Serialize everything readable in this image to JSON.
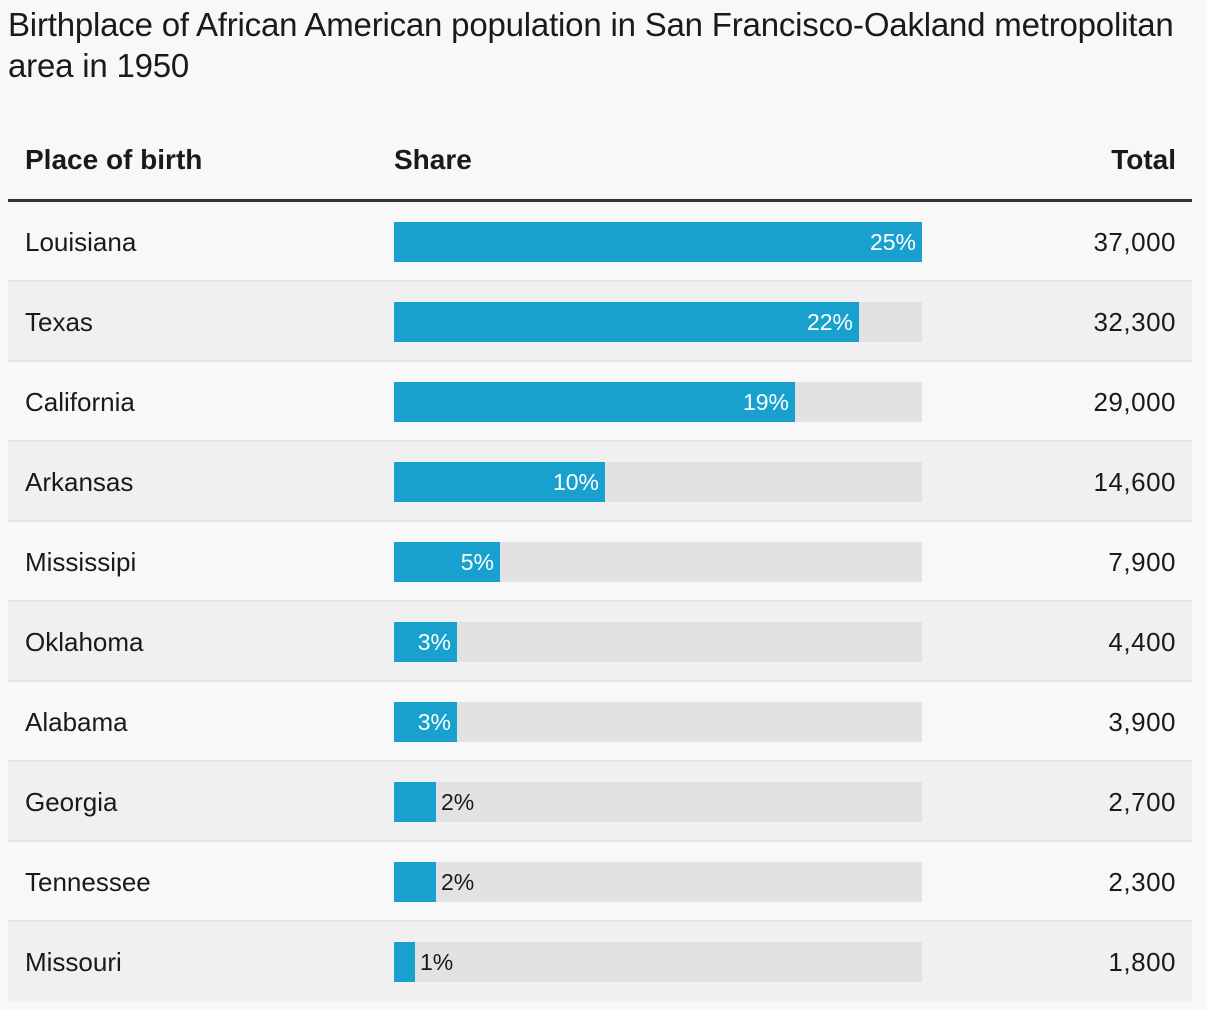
{
  "chart_data": {
    "type": "table",
    "title": "Birthplace of African American population in San Francisco-Oakland metropolitan area in 1950",
    "columns": [
      "Place of birth",
      "Share",
      "Total"
    ],
    "share_max": 25,
    "rows": [
      {
        "place": "Louisiana",
        "share": 25,
        "share_label": "25%",
        "total": "37,000"
      },
      {
        "place": "Texas",
        "share": 22,
        "share_label": "22%",
        "total": "32,300"
      },
      {
        "place": "California",
        "share": 19,
        "share_label": "19%",
        "total": "29,000"
      },
      {
        "place": "Arkansas",
        "share": 10,
        "share_label": "10%",
        "total": "14,600"
      },
      {
        "place": "Mississipi",
        "share": 5,
        "share_label": "5%",
        "total": "7,900"
      },
      {
        "place": "Oklahoma",
        "share": 3,
        "share_label": "3%",
        "total": "4,400"
      },
      {
        "place": "Alabama",
        "share": 3,
        "share_label": "3%",
        "total": "3,900"
      },
      {
        "place": "Georgia",
        "share": 2,
        "share_label": "2%",
        "total": "2,700"
      },
      {
        "place": "Tennessee",
        "share": 2,
        "share_label": "2%",
        "total": "2,300"
      },
      {
        "place": "Missouri",
        "share": 1,
        "share_label": "1%",
        "total": "1,800"
      }
    ],
    "colors": {
      "bar": "#18a1cf",
      "track": "#e2e2e2"
    }
  }
}
